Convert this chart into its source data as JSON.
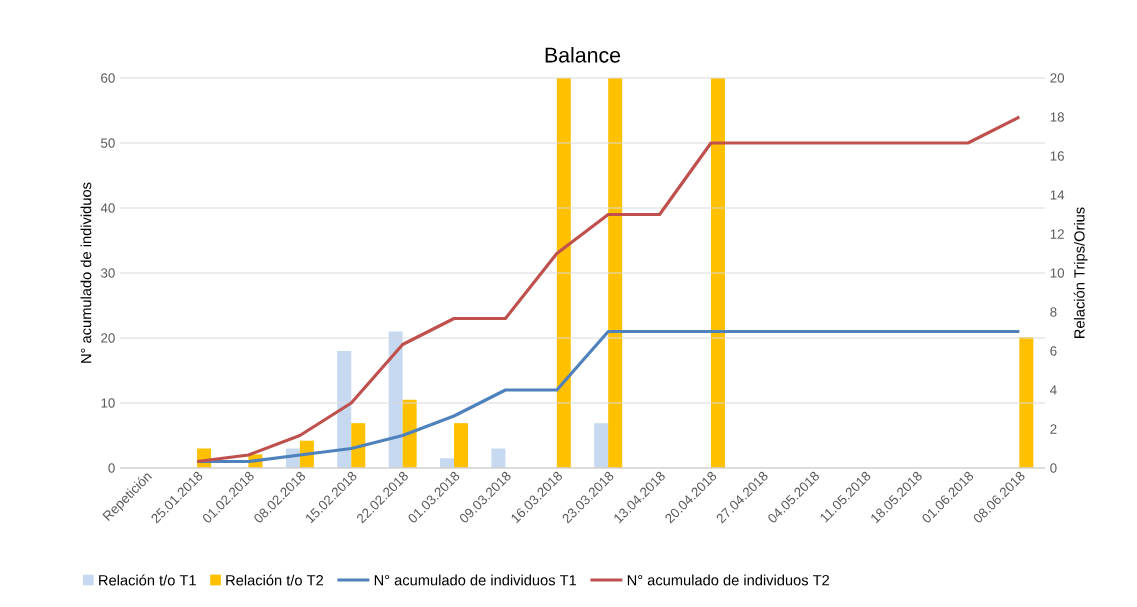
{
  "chart_data": {
    "type": "bar",
    "title": "Balance",
    "ylabel": "N° acumulado de individuos",
    "y2label": "Relación Trips/Orius",
    "categories": [
      "Repetición",
      "25.01.2018",
      "01.02.2018",
      "08.02.2018",
      "15.02.2018",
      "22.02.2018",
      "01.03.2018",
      "09.03.2018",
      "16.03.2018",
      "23.03.2018",
      "13.04.2018",
      "20.04.2018",
      "27.04.2018",
      "04.05.2018",
      "11.05.2018",
      "18.05.2018",
      "01.06.2018",
      "08.06.2018"
    ],
    "series": [
      {
        "name": "Relación t/o T1",
        "axis": "y2",
        "color": "#c6d9f0",
        "values": [
          null,
          null,
          null,
          1.0,
          6.0,
          7.0,
          0.5,
          1.0,
          null,
          2.3,
          null,
          null,
          null,
          null,
          null,
          null,
          null,
          null
        ]
      },
      {
        "name": "Relación t/o T2",
        "axis": "y2",
        "color": "#ffc000",
        "values": [
          null,
          1.0,
          0.7,
          1.4,
          2.3,
          3.5,
          2.3,
          null,
          20,
          20,
          null,
          20,
          null,
          null,
          null,
          null,
          null,
          6.7
        ]
      },
      {
        "name": "N° acumulado de individuos T1",
        "type": "line",
        "color": "#4f81bd",
        "values": [
          null,
          1,
          1,
          2,
          3,
          5,
          8,
          12,
          12,
          21,
          21,
          21,
          21,
          21,
          21,
          21,
          21,
          21
        ]
      },
      {
        "name": "N° acumulado de individuos T2",
        "type": "line",
        "color": "#c0504d",
        "values": [
          null,
          1,
          2,
          5,
          10,
          19,
          23,
          23,
          33,
          39,
          39,
          50,
          50,
          50,
          50,
          50,
          50,
          54
        ]
      }
    ],
    "ylim": [
      0,
      60
    ],
    "yticks": [
      0,
      10,
      20,
      30,
      40,
      50,
      60
    ],
    "y2lim": [
      0,
      20
    ],
    "y2ticks": [
      0,
      2,
      4,
      6,
      8,
      10,
      12,
      14,
      16,
      18,
      20
    ],
    "grid": "y",
    "legend": "bottom"
  }
}
